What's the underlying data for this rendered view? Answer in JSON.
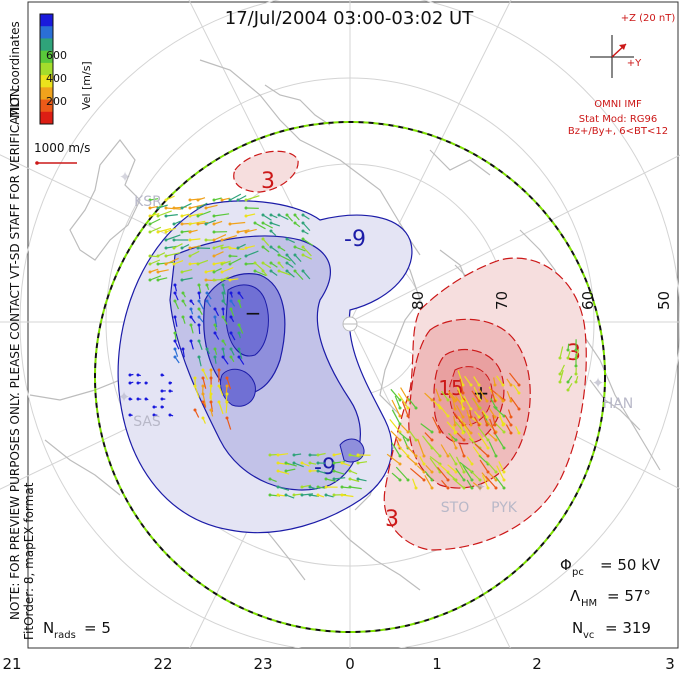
{
  "title": "17/Jul/2004 03:00-03:02 UT",
  "side_notes": {
    "coord": "MLT coordinates",
    "preview": "NOTE: FOR PREVIEW PURPOSES ONLY. PLEASE CONTACT VT-SD STAFF FOR VERIFICATION.",
    "fit": "FitOrder: 8, mapEX format"
  },
  "colorbar": {
    "label": "Vel [m/s]",
    "ticks": [
      "600",
      "400",
      "200"
    ],
    "colors": [
      "#1a1adc",
      "#2a6fd6",
      "#2fa37a",
      "#59c83a",
      "#a4dc2c",
      "#ece21c",
      "#f0a21c",
      "#ec5a18",
      "#dc1e14"
    ]
  },
  "ref_vector_label": "1000 m/s",
  "imf": {
    "z_label": "+Z (20 nT)",
    "y_label": "+Y",
    "lines": [
      "OMNI IMF",
      "Stat Mod: RG96",
      "Bz+/By+, 6<BT<12"
    ]
  },
  "lat_labels": [
    "80",
    "70",
    "60",
    "50"
  ],
  "contour_labels": {
    "neg": "-9",
    "neg2": "-9",
    "pos": "3",
    "pos2": "3",
    "pos3": "15"
  },
  "cell_marks": {
    "min": "−",
    "max": "+"
  },
  "stations": [
    "KSR",
    "SAS",
    "HAN",
    "STO",
    "PYK"
  ],
  "stats": {
    "phi_pc": {
      "label": "Φ",
      "sub": "pc",
      "value": "= 50 kV"
    },
    "lambda_hm": {
      "label": "Λ",
      "sub": "HM",
      "value": "= 57°"
    },
    "n_vc": {
      "label": "N",
      "sub": "vc",
      "value": "= 319"
    },
    "n_rads": {
      "label": "N",
      "sub": "rads",
      "value": "= 5"
    }
  },
  "mlt_labels": [
    "21",
    "22",
    "23",
    "0",
    "1",
    "2",
    "3"
  ],
  "style": {
    "neg_color": "#1c1ca8",
    "pos_color": "#cc1818",
    "boundary_color": "#7ee000",
    "coast_color": "#bdbdbd"
  }
}
